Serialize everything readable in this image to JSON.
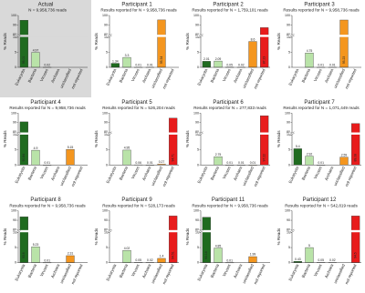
{
  "chart_data": [
    {
      "type": "bar",
      "title": "Actual",
      "subtitle": "N = 9,958,736 reads",
      "y_label": "% Reads",
      "background": "#d9d9d9",
      "categories": [
        "Eukaryota",
        "Bacteria",
        "Viruses",
        "Archaea",
        "unclassified",
        "not reported"
      ],
      "values": [
        95.01,
        4.97,
        0.02,
        null,
        null,
        null
      ],
      "colors": [
        "#1f6b1f",
        "#b9e3a8",
        "#ffffff",
        "#ffffff",
        "#f4961f",
        "#e81c1c"
      ],
      "ylim": [
        0,
        100
      ],
      "ybreak": [
        10,
        80
      ],
      "yticks": [
        0,
        5,
        10,
        80,
        90,
        100
      ]
    },
    {
      "type": "bar",
      "title": "Participant 1",
      "subtitle": "Results reported for N = 9,958,736 reads",
      "y_label": "% Reads",
      "categories": [
        "Eukaryota",
        "Bacteria",
        "Viruses",
        "Archaea",
        "unclassified",
        "not reported"
      ],
      "values": [
        1.34,
        3.3,
        0.01,
        0.01,
        95.34,
        null
      ],
      "colors": [
        "#1f6b1f",
        "#b9e3a8",
        "#ffffff",
        "#ffffff",
        "#f4961f",
        "#e81c1c"
      ],
      "ylim": [
        0,
        100
      ],
      "ybreak": [
        10,
        80
      ],
      "yticks": [
        0,
        5,
        10,
        80,
        90,
        100
      ]
    },
    {
      "type": "bar",
      "title": "Participant 2",
      "subtitle": "Results reported for N = 1,759,101 reads",
      "y_label": "% Reads",
      "categories": [
        "Eukaryota",
        "Bacteria",
        "Viruses",
        "Archaea",
        "unclassified",
        "not reported"
      ],
      "values": [
        2.01,
        2.09,
        0.05,
        0.02,
        8.6,
        87.23
      ],
      "colors": [
        "#1f6b1f",
        "#b9e3a8",
        "#ffffff",
        "#ffffff",
        "#f4961f",
        "#e81c1c"
      ],
      "ylim": [
        0,
        100
      ],
      "ybreak": [
        10,
        80
      ],
      "yticks": [
        0,
        5,
        10,
        80,
        90,
        100
      ]
    },
    {
      "type": "bar",
      "title": "Participant 3",
      "subtitle": "Results reported for N = 9,958,736 reads",
      "y_label": "% Reads",
      "categories": [
        "Eukaryota",
        "Bacteria",
        "Viruses",
        "Archaea",
        "unclassified",
        "not reported"
      ],
      "values": [
        null,
        4.75,
        0.01,
        0.01,
        95.23,
        null
      ],
      "colors": [
        "#1f6b1f",
        "#b9e3a8",
        "#ffffff",
        "#ffffff",
        "#f4961f",
        "#e81c1c"
      ],
      "ylim": [
        0,
        100
      ],
      "ybreak": [
        10,
        80
      ],
      "yticks": [
        0,
        5,
        10,
        80,
        90,
        100
      ]
    },
    {
      "type": "bar",
      "title": "Participant 4",
      "subtitle": "Results reported for N = 9,958,736 reads",
      "y_label": "% Reads",
      "categories": [
        "Eukaryota",
        "Bacteria",
        "Viruses",
        "Archaea",
        "unclassified",
        "not reported"
      ],
      "values": [
        90.84,
        4.9,
        0.01,
        null,
        5.15,
        null
      ],
      "colors": [
        "#1f6b1f",
        "#b9e3a8",
        "#ffffff",
        "#ffffff",
        "#f4961f",
        "#e81c1c"
      ],
      "ylim": [
        0,
        100
      ],
      "ybreak": [
        10,
        80
      ],
      "yticks": [
        0,
        5,
        10,
        80,
        90,
        100
      ]
    },
    {
      "type": "bar",
      "title": "Participant 5",
      "subtitle": "Results reported for N = 526,204 reads",
      "y_label": "% Reads",
      "categories": [
        "Eukaryota",
        "Bacteria",
        "Viruses",
        "Archaea",
        "unclassified",
        "not reported"
      ],
      "values": [
        null,
        4.95,
        0.06,
        0.01,
        0.27,
        94.71
      ],
      "colors": [
        "#1f6b1f",
        "#b9e3a8",
        "#ffffff",
        "#ffffff",
        "#f4961f",
        "#e81c1c"
      ],
      "ylim": [
        0,
        100
      ],
      "ybreak": [
        10,
        80
      ],
      "yticks": [
        0,
        5,
        10,
        80,
        90,
        100
      ]
    },
    {
      "type": "bar",
      "title": "Participant 6",
      "subtitle": "Results reported for N = 277,833 reads",
      "y_label": "% Reads",
      "categories": [
        "Eukaryota",
        "Bacteria",
        "Viruses",
        "Archaea",
        "unclassified",
        "not reported"
      ],
      "values": [
        null,
        2.75,
        0.01,
        0.01,
        0.01,
        97.22
      ],
      "colors": [
        "#1f6b1f",
        "#b9e3a8",
        "#ffffff",
        "#ffffff",
        "#f4961f",
        "#e81c1c"
      ],
      "ylim": [
        0,
        100
      ],
      "ybreak": [
        10,
        80
      ],
      "yticks": [
        0,
        5,
        10,
        80,
        90,
        100
      ]
    },
    {
      "type": "bar",
      "title": "Participant 7",
      "subtitle": "Results reported for N = 1,071,449 reads",
      "y_label": "% Reads",
      "categories": [
        "Eukaryota",
        "Bacteria",
        "Viruses",
        "Archaea",
        "unclassified",
        "not reported"
      ],
      "values": [
        5.4,
        2.92,
        0.01,
        null,
        2.59,
        89.08
      ],
      "colors": [
        "#1f6b1f",
        "#b9e3a8",
        "#ffffff",
        "#ffffff",
        "#f4961f",
        "#e81c1c"
      ],
      "ylim": [
        0,
        100
      ],
      "ybreak": [
        10,
        80
      ],
      "yticks": [
        0,
        5,
        10,
        80,
        90,
        100
      ]
    },
    {
      "type": "bar",
      "title": "Participant 8",
      "subtitle": "Results reported for N = 9,958,736 reads",
      "y_label": "% Reads",
      "categories": [
        "Eukaryota",
        "Bacteria",
        "Viruses",
        "Archaea",
        "unclassified",
        "not reported"
      ],
      "values": [
        93.6,
        5.23,
        0.01,
        null,
        2.31,
        null
      ],
      "colors": [
        "#1f6b1f",
        "#b9e3a8",
        "#ffffff",
        "#ffffff",
        "#f4961f",
        "#e81c1c"
      ],
      "ylim": [
        0,
        100
      ],
      "ybreak": [
        10,
        80
      ],
      "yticks": [
        0,
        5,
        10,
        80,
        90,
        100
      ]
    },
    {
      "type": "bar",
      "title": "Participant 9",
      "subtitle": "Results reported for N = 528,173 reads",
      "y_label": "% Reads",
      "categories": [
        "Eukaryota",
        "Bacteria",
        "Viruses",
        "Archaea",
        "unclassified",
        "not reported"
      ],
      "values": [
        null,
        4.02,
        0.05,
        0.02,
        1.4,
        94.51
      ],
      "colors": [
        "#1f6b1f",
        "#b9e3a8",
        "#ffffff",
        "#ffffff",
        "#f4961f",
        "#e81c1c"
      ],
      "ylim": [
        0,
        100
      ],
      "ybreak": [
        10,
        80
      ],
      "yticks": [
        0,
        5,
        10,
        80,
        90,
        100
      ]
    },
    {
      "type": "bar",
      "title": "Participant 11",
      "subtitle": "Results reported for N = 9,958,736 reads",
      "y_label": "% Reads",
      "categories": [
        "Eukaryota",
        "Bacteria",
        "Viruses",
        "Archaea",
        "unclassified",
        "not reported"
      ],
      "values": [
        93.14,
        4.85,
        0.01,
        null,
        1.99,
        null
      ],
      "colors": [
        "#1f6b1f",
        "#b9e3a8",
        "#ffffff",
        "#ffffff",
        "#f4961f",
        "#e81c1c"
      ],
      "ylim": [
        0,
        100
      ],
      "ybreak": [
        10,
        80
      ],
      "yticks": [
        0,
        5,
        10,
        80,
        90,
        100
      ]
    },
    {
      "type": "bar",
      "title": "Participant 12",
      "subtitle": "Results reported for N = 542,819 reads",
      "y_label": "% Reads",
      "categories": [
        "Eukaryota",
        "Bacteria",
        "Viruses",
        "Archaea",
        "unclassified",
        "not reported"
      ],
      "values": [
        0.43,
        5,
        0.05,
        0.02,
        null,
        94.5
      ],
      "colors": [
        "#1f6b1f",
        "#b9e3a8",
        "#ffffff",
        "#ffffff",
        "#f4961f",
        "#e81c1c"
      ],
      "ylim": [
        0,
        100
      ],
      "ybreak": [
        10,
        80
      ],
      "yticks": [
        0,
        5,
        10,
        80,
        90,
        100
      ]
    }
  ]
}
